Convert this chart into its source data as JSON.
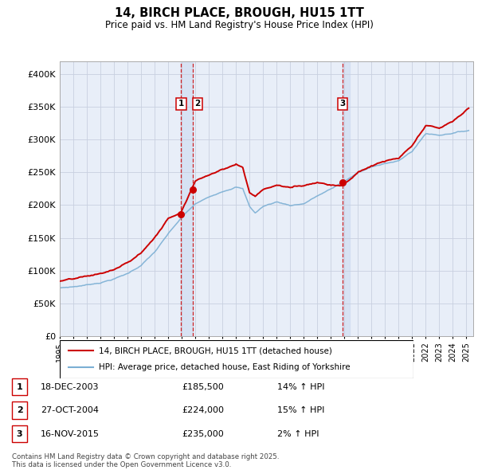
{
  "title": "14, BIRCH PLACE, BROUGH, HU15 1TT",
  "subtitle": "Price paid vs. HM Land Registry's House Price Index (HPI)",
  "legend_line1": "14, BIRCH PLACE, BROUGH, HU15 1TT (detached house)",
  "legend_line2": "HPI: Average price, detached house, East Riding of Yorkshire",
  "footer": "Contains HM Land Registry data © Crown copyright and database right 2025.\nThis data is licensed under the Open Government Licence v3.0.",
  "sale_color": "#cc0000",
  "hpi_color": "#7bafd4",
  "background_color": "#e8eef8",
  "grid_color": "#c8d0e0",
  "ylim": [
    0,
    420000
  ],
  "yticks": [
    0,
    50000,
    100000,
    150000,
    200000,
    250000,
    300000,
    350000,
    400000
  ],
  "sale_dates_num": [
    2003.96,
    2004.82,
    2015.87
  ],
  "sale_prices": [
    185500,
    224000,
    235000
  ],
  "sale_labels": [
    "1",
    "2",
    "3"
  ],
  "sale_table": [
    {
      "num": "1",
      "date": "18-DEC-2003",
      "price": "£185,500",
      "change": "14% ↑ HPI"
    },
    {
      "num": "2",
      "date": "27-OCT-2004",
      "price": "£224,000",
      "change": "15% ↑ HPI"
    },
    {
      "num": "3",
      "date": "16-NOV-2015",
      "price": "£235,000",
      "change": "2% ↑ HPI"
    }
  ],
  "hpi_key_points": [
    [
      1995,
      1,
      72000
    ],
    [
      1996,
      1,
      74000
    ],
    [
      1997,
      1,
      77000
    ],
    [
      1998,
      1,
      81000
    ],
    [
      1999,
      1,
      87000
    ],
    [
      2000,
      1,
      95000
    ],
    [
      2001,
      1,
      108000
    ],
    [
      2002,
      1,
      128000
    ],
    [
      2003,
      1,
      155000
    ],
    [
      2004,
      1,
      180000
    ],
    [
      2005,
      1,
      200000
    ],
    [
      2006,
      1,
      210000
    ],
    [
      2007,
      1,
      220000
    ],
    [
      2008,
      1,
      228000
    ],
    [
      2008,
      7,
      225000
    ],
    [
      2009,
      1,
      198000
    ],
    [
      2009,
      6,
      188000
    ],
    [
      2010,
      1,
      198000
    ],
    [
      2011,
      1,
      205000
    ],
    [
      2012,
      1,
      200000
    ],
    [
      2013,
      1,
      203000
    ],
    [
      2014,
      1,
      215000
    ],
    [
      2015,
      1,
      225000
    ],
    [
      2016,
      1,
      237000
    ],
    [
      2017,
      1,
      250000
    ],
    [
      2018,
      1,
      258000
    ],
    [
      2019,
      1,
      265000
    ],
    [
      2020,
      1,
      268000
    ],
    [
      2021,
      1,
      283000
    ],
    [
      2022,
      1,
      310000
    ],
    [
      2023,
      1,
      308000
    ],
    [
      2024,
      1,
      312000
    ],
    [
      2025,
      3,
      316000
    ]
  ],
  "price_key_points": [
    [
      1995,
      1,
      82000
    ],
    [
      1996,
      1,
      84000
    ],
    [
      1997,
      1,
      87000
    ],
    [
      1998,
      1,
      91000
    ],
    [
      1999,
      1,
      97000
    ],
    [
      2000,
      1,
      107000
    ],
    [
      2001,
      1,
      122000
    ],
    [
      2002,
      1,
      146000
    ],
    [
      2003,
      1,
      175000
    ],
    [
      2003,
      12,
      185500
    ],
    [
      2004,
      10,
      224000
    ],
    [
      2005,
      1,
      235000
    ],
    [
      2006,
      1,
      245000
    ],
    [
      2007,
      1,
      255000
    ],
    [
      2008,
      1,
      263000
    ],
    [
      2008,
      7,
      258000
    ],
    [
      2009,
      1,
      220000
    ],
    [
      2009,
      6,
      215000
    ],
    [
      2010,
      1,
      225000
    ],
    [
      2011,
      1,
      232000
    ],
    [
      2012,
      1,
      228000
    ],
    [
      2013,
      1,
      232000
    ],
    [
      2014,
      1,
      238000
    ],
    [
      2015,
      1,
      235000
    ],
    [
      2015,
      11,
      235000
    ],
    [
      2016,
      1,
      238000
    ],
    [
      2017,
      1,
      255000
    ],
    [
      2018,
      1,
      265000
    ],
    [
      2019,
      1,
      272000
    ],
    [
      2020,
      1,
      275000
    ],
    [
      2021,
      1,
      293000
    ],
    [
      2022,
      1,
      322000
    ],
    [
      2023,
      1,
      318000
    ],
    [
      2024,
      1,
      328000
    ],
    [
      2025,
      3,
      348000
    ]
  ]
}
